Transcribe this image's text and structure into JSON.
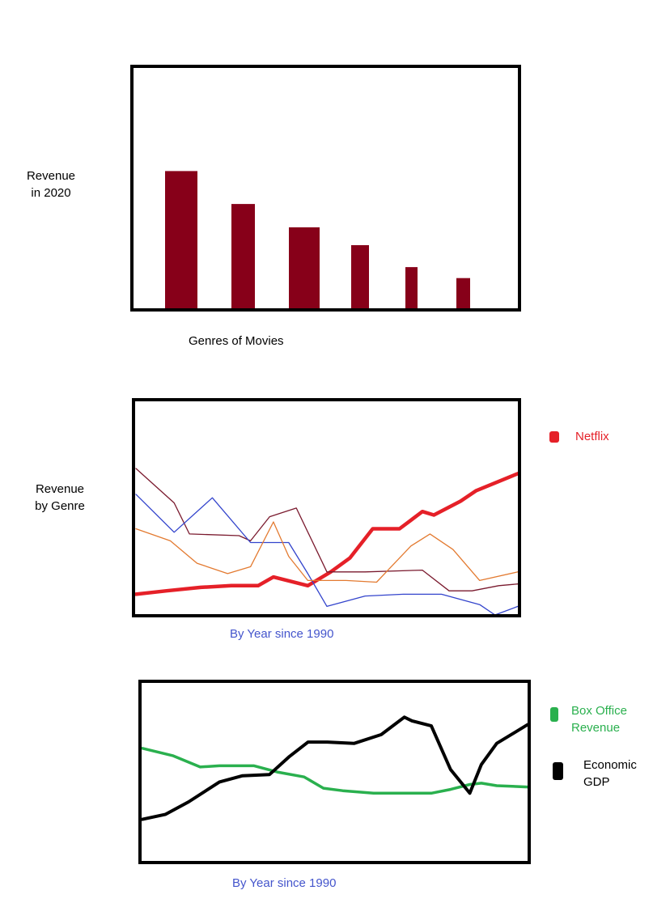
{
  "chart_data": [
    {
      "type": "bar",
      "ylabel": [
        "Revenue",
        "in 2020"
      ],
      "xlabel": "Genres of Movies",
      "values": [
        10,
        7.6,
        5.9,
        4.6,
        3.0,
        2.2
      ],
      "ylim": [
        0,
        12.5
      ],
      "colors": {
        "bar": "#870019",
        "frame": "#000000"
      }
    },
    {
      "type": "line",
      "ylabel": [
        "Revenue",
        "by Genre"
      ],
      "xlabel": "By Year since 1990",
      "ylim": [
        0,
        100
      ],
      "legend": [
        {
          "label": "Netflix",
          "color": "#e52028"
        }
      ],
      "series": [
        {
          "color": "#e52028",
          "width": 4.5,
          "x": [
            0,
            8,
            17,
            25,
            32,
            36,
            45,
            51,
            56,
            62,
            69,
            72,
            75,
            78,
            85,
            89,
            100
          ],
          "y": [
            12,
            14,
            16,
            17,
            17,
            22,
            17,
            25,
            33,
            50,
            50,
            55,
            60,
            58,
            66,
            72,
            82
          ]
        },
        {
          "color": "#7a1a2e",
          "width": 1.3,
          "x": [
            0,
            10,
            14,
            27,
            30,
            35,
            42,
            50,
            60,
            75,
            82,
            88,
            95,
            100
          ],
          "y": [
            85,
            65,
            47,
            46,
            43,
            57,
            62,
            25,
            25,
            26,
            14,
            14,
            17,
            18
          ]
        },
        {
          "color": "#3344cc",
          "width": 1.3,
          "x": [
            0,
            10,
            20,
            30,
            40,
            45,
            50,
            60,
            70,
            80,
            90,
            94,
            100
          ],
          "y": [
            70,
            48,
            68,
            42,
            42,
            24,
            5,
            11,
            12,
            12,
            6,
            0,
            5
          ]
        },
        {
          "color": "#e37a30",
          "width": 1.3,
          "x": [
            0,
            9,
            16,
            24,
            30,
            36,
            40,
            45,
            55,
            63,
            66,
            72,
            77,
            83,
            90,
            100
          ],
          "y": [
            50,
            43,
            30,
            24,
            28,
            54,
            34,
            20,
            20,
            19,
            26,
            40,
            47,
            38,
            20,
            25
          ]
        }
      ]
    },
    {
      "type": "line",
      "xlabel": "By Year since 1990",
      "ylim": [
        0,
        100
      ],
      "legend": [
        {
          "label": [
            "Box Office",
            "Revenue"
          ],
          "color": "#2ab04e"
        },
        {
          "label": [
            "Economic",
            "GDP"
          ],
          "color": "#000000"
        }
      ],
      "series": [
        {
          "color": "#2ab04e",
          "width": 3.5,
          "x": [
            0,
            8,
            15,
            20,
            29,
            35,
            42,
            47,
            52,
            56,
            60,
            66,
            75,
            80,
            85,
            88,
            92,
            100
          ],
          "y": [
            67,
            61,
            52,
            53,
            53,
            48,
            44,
            35,
            33,
            32,
            31,
            31,
            31,
            34,
            38,
            39,
            37,
            36
          ]
        },
        {
          "color": "#000000",
          "width": 4,
          "x": [
            0,
            6,
            12,
            20,
            26,
            33,
            38,
            43,
            48,
            55,
            62,
            68,
            70,
            75,
            80,
            85,
            88,
            92,
            100
          ],
          "y": [
            10,
            14,
            24,
            40,
            45,
            46,
            60,
            72,
            72,
            71,
            78,
            92,
            89,
            85,
            50,
            31,
            54,
            71,
            86
          ]
        }
      ]
    }
  ]
}
